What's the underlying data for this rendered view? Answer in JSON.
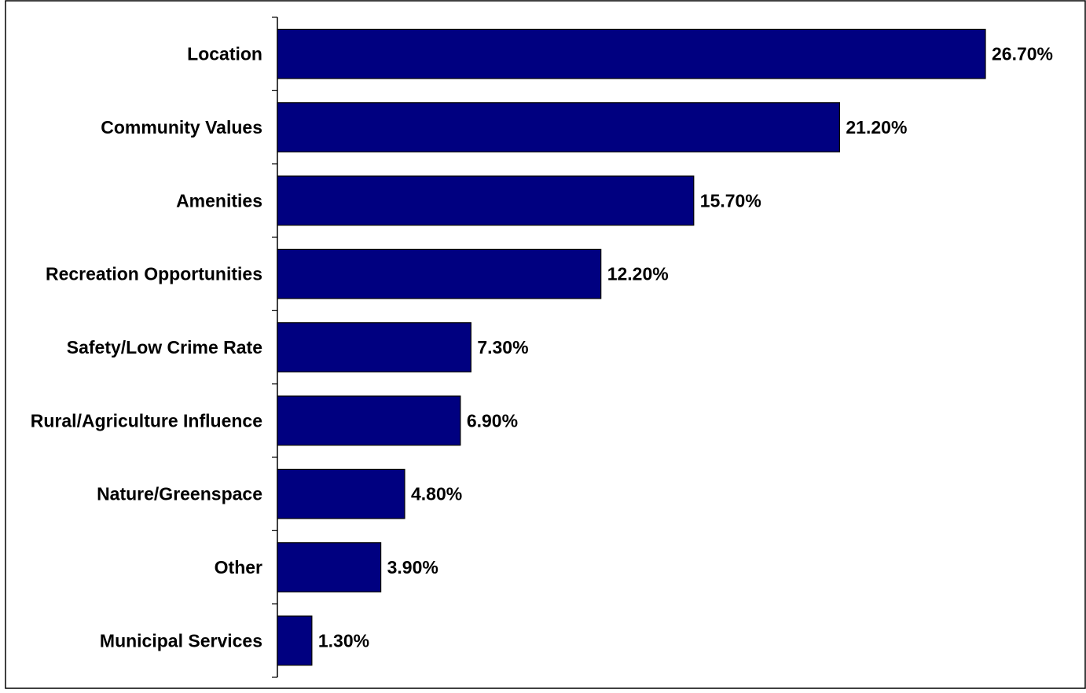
{
  "chart_data": {
    "type": "bar",
    "orientation": "horizontal",
    "title": "",
    "xlabel": "",
    "ylabel": "",
    "categories": [
      "Location",
      "Community Values",
      "Amenities",
      "Recreation Opportunities",
      "Safety/Low Crime Rate",
      "Rural/Agriculture Influence",
      "Nature/Greenspace",
      "Other",
      "Municipal Services"
    ],
    "values": [
      26.7,
      21.2,
      15.7,
      12.2,
      7.3,
      6.9,
      4.8,
      3.9,
      1.3
    ],
    "value_labels": [
      "26.70%",
      "21.20%",
      "15.70%",
      "12.20%",
      "7.30%",
      "6.90%",
      "4.80%",
      "3.90%",
      "1.30%"
    ],
    "xlim": [
      0,
      30
    ],
    "grid": false,
    "legend": "none",
    "bar_color": "#000080",
    "bar_border_color": "#000000"
  }
}
